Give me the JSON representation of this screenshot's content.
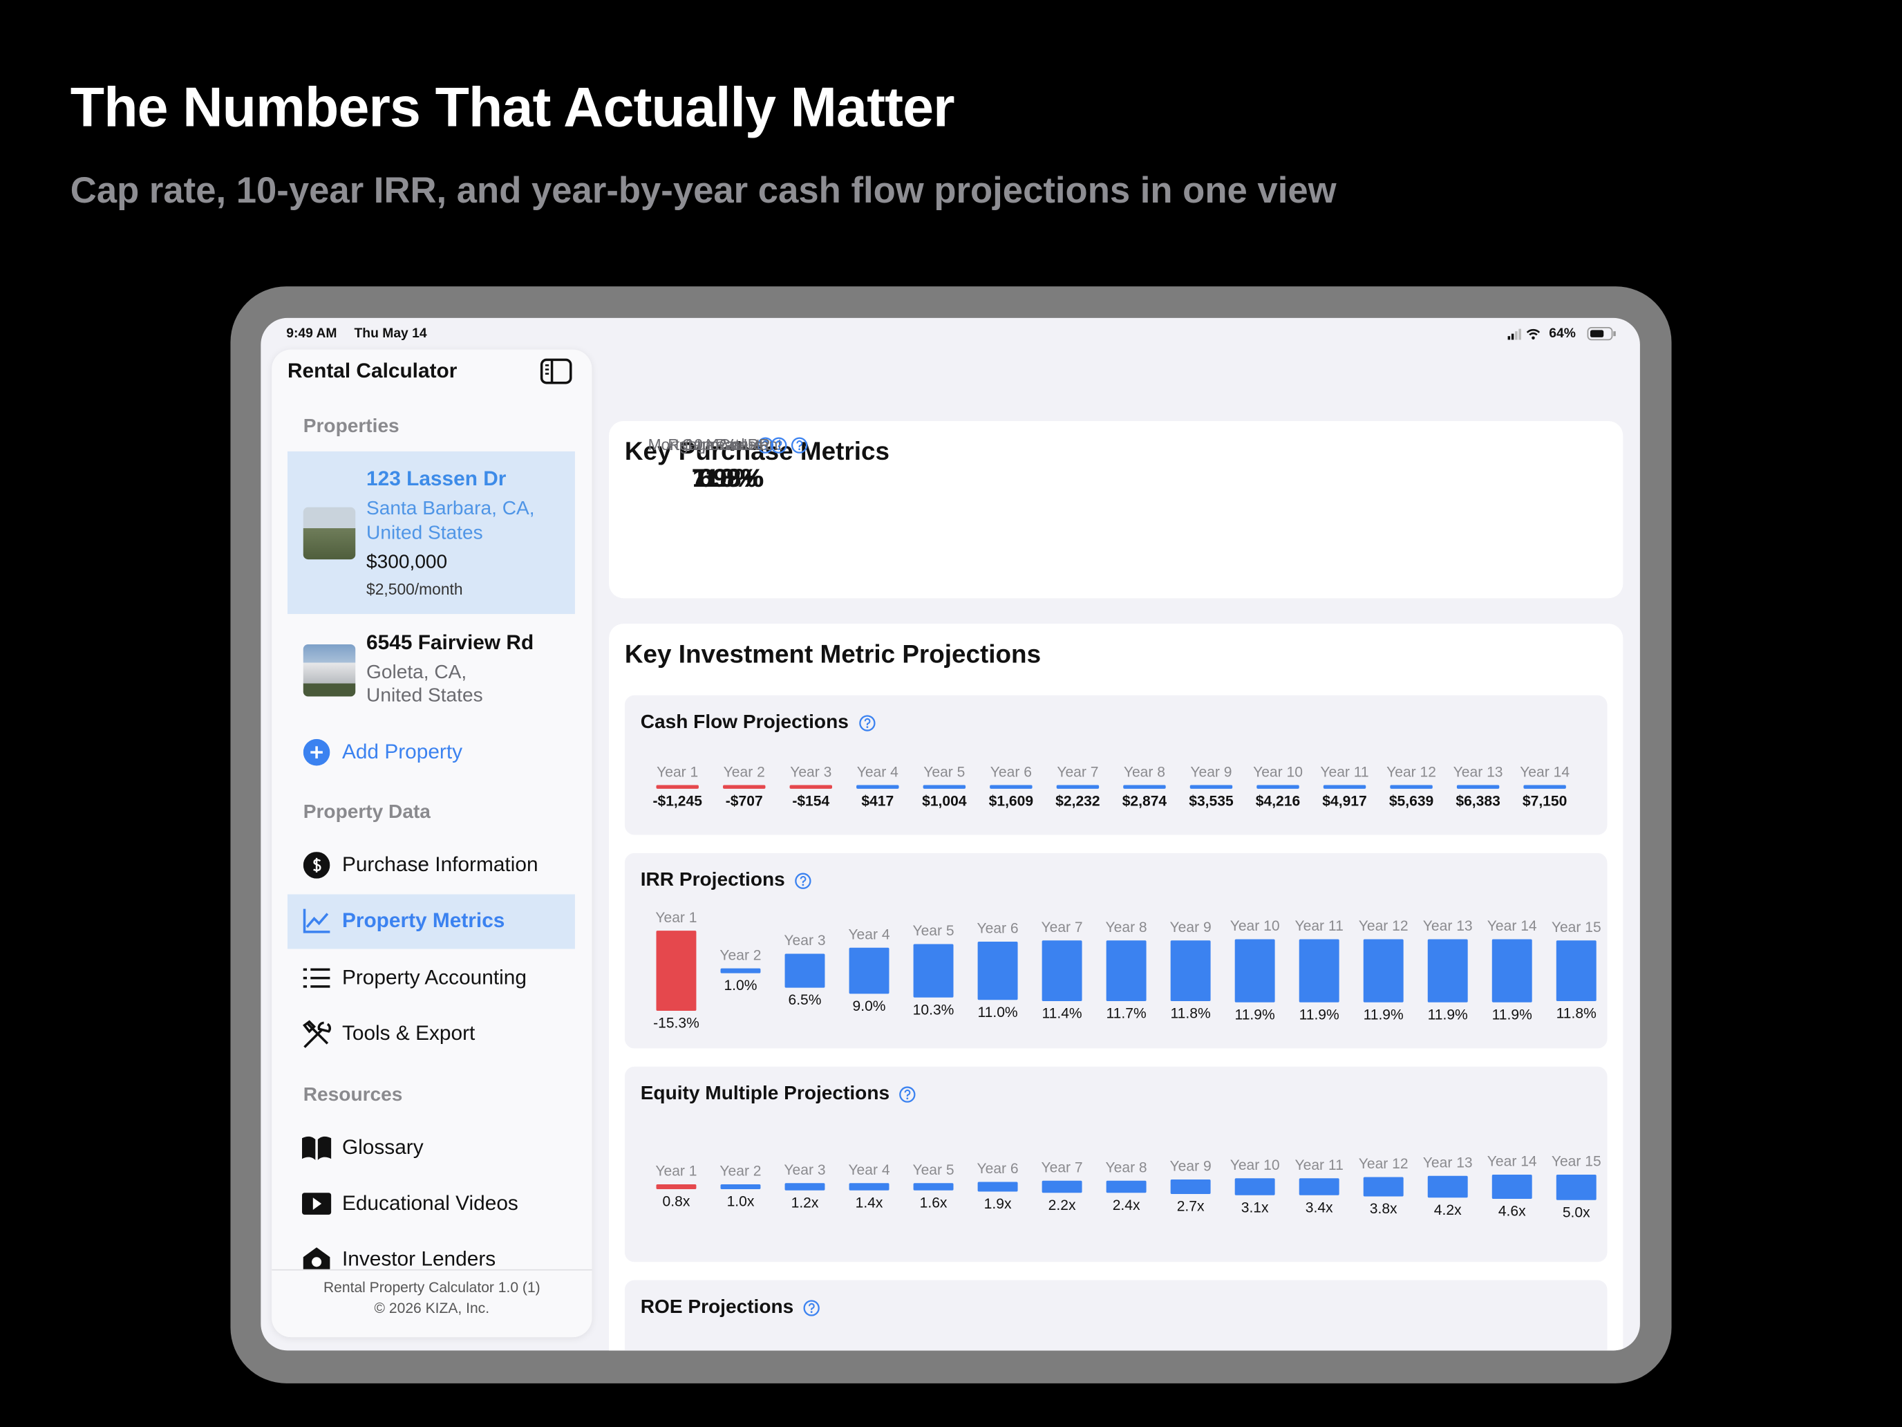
{
  "header": {
    "title": "The Numbers That Actually Matter",
    "subtitle": "Cap rate, 10-year IRR, and year-by-year cash flow projections in one view"
  },
  "status_bar": {
    "time": "9:49 AM",
    "date": "Thu May 14",
    "battery": "64%"
  },
  "sidebar": {
    "title": "Rental Calculator",
    "properties_heading": "Properties",
    "properties": [
      {
        "name": "123 Lassen Dr",
        "address_lines": [
          "Santa Barbara, CA,",
          "United States"
        ],
        "price": "$300,000",
        "rent": "$2,500/month"
      },
      {
        "name": "6545 Fairview Rd",
        "address_lines": [
          "Goleta, CA,",
          "United States"
        ]
      }
    ],
    "add_property": "Add Property",
    "property_data_heading": "Property Data",
    "property_data_items": [
      "Purchase Information",
      "Property Metrics",
      "Property Accounting",
      "Tools & Export"
    ],
    "resources_heading": "Resources",
    "resources_items": [
      "Glossary",
      "Educational Videos",
      "Investor Lenders"
    ],
    "footer": [
      "Rental Property Calculator 1.0 (1)",
      "© 2026 KIZA, Inc."
    ]
  },
  "main": {
    "purchase_metrics": {
      "title": "Key Purchase Metrics",
      "tiles": [
        {
          "label": "Cap Rate",
          "value": "6.0%"
        },
        {
          "label": "Mortgage Constant",
          "value": "7.98%"
        },
        {
          "label": "Rent to Value",
          "value": "0.8%"
        },
        {
          "label": "10 Year IRR",
          "value": "11.9%"
        }
      ]
    },
    "projections": {
      "title": "Key Investment Metric Projections",
      "panels": [
        {
          "title": "Cash Flow Projections",
          "categories": [
            "Year 1",
            "Year 2",
            "Year 3",
            "Year 4",
            "Year 5",
            "Year 6",
            "Year 7",
            "Year 8",
            "Year 9",
            "Year 10",
            "Year 11",
            "Year 12",
            "Year 13",
            "Year 14"
          ],
          "values": [
            -1245,
            -707,
            -154,
            417,
            1004,
            1609,
            2232,
            2874,
            3535,
            4216,
            4917,
            5639,
            6383,
            7150
          ],
          "value_labels": [
            "-$1,245",
            "-$707",
            "-$154",
            "$417",
            "$1,004",
            "$1,609",
            "$2,232",
            "$2,874",
            "$3,535",
            "$4,216",
            "$4,917",
            "$5,639",
            "$6,383",
            "$7,150"
          ],
          "colors": [
            "#e5484d",
            "#e5484d",
            "#e5484d",
            "#3b82f0",
            "#3b82f0",
            "#3b82f0",
            "#3b82f0",
            "#3b82f0",
            "#3b82f0",
            "#3b82f0",
            "#3b82f0",
            "#3b82f0",
            "#3b82f0",
            "#3b82f0"
          ]
        },
        {
          "title": "IRR Projections",
          "categories": [
            "Year 1",
            "Year 2",
            "Year 3",
            "Year 4",
            "Year 5",
            "Year 6",
            "Year 7",
            "Year 8",
            "Year 9",
            "Year 10",
            "Year 11",
            "Year 12",
            "Year 13",
            "Year 14",
            "Year 15"
          ],
          "values": [
            -15.3,
            1.0,
            6.5,
            9.0,
            10.3,
            11.0,
            11.4,
            11.7,
            11.8,
            11.9,
            11.9,
            11.9,
            11.9,
            11.9,
            11.8
          ],
          "value_labels": [
            "-15.3%",
            "1.0%",
            "6.5%",
            "9.0%",
            "10.3%",
            "11.0%",
            "11.4%",
            "11.7%",
            "11.8%",
            "11.9%",
            "11.9%",
            "11.9%",
            "11.9%",
            "11.9%",
            "11.8%"
          ],
          "colors": [
            "#e5484d",
            "#3b82f0",
            "#3b82f0",
            "#3b82f0",
            "#3b82f0",
            "#3b82f0",
            "#3b82f0",
            "#3b82f0",
            "#3b82f0",
            "#3b82f0",
            "#3b82f0",
            "#3b82f0",
            "#3b82f0",
            "#3b82f0",
            "#3b82f0"
          ]
        },
        {
          "title": "Equity Multiple Projections",
          "categories": [
            "Year 1",
            "Year 2",
            "Year 3",
            "Year 4",
            "Year 5",
            "Year 6",
            "Year 7",
            "Year 8",
            "Year 9",
            "Year 10",
            "Year 11",
            "Year 12",
            "Year 13",
            "Year 14",
            "Year 15"
          ],
          "values": [
            0.8,
            1.0,
            1.2,
            1.4,
            1.6,
            1.9,
            2.2,
            2.4,
            2.7,
            3.1,
            3.4,
            3.8,
            4.2,
            4.6,
            5.0
          ],
          "value_labels": [
            "0.8x",
            "1.0x",
            "1.2x",
            "1.4x",
            "1.6x",
            "1.9x",
            "2.2x",
            "2.4x",
            "2.7x",
            "3.1x",
            "3.4x",
            "3.8x",
            "4.2x",
            "4.6x",
            "5.0x"
          ],
          "colors": [
            "#e5484d",
            "#3b82f0",
            "#3b82f0",
            "#3b82f0",
            "#3b82f0",
            "#3b82f0",
            "#3b82f0",
            "#3b82f0",
            "#3b82f0",
            "#3b82f0",
            "#3b82f0",
            "#3b82f0",
            "#3b82f0",
            "#3b82f0",
            "#3b82f0"
          ]
        },
        {
          "title": "ROE Projections"
        }
      ]
    }
  }
}
